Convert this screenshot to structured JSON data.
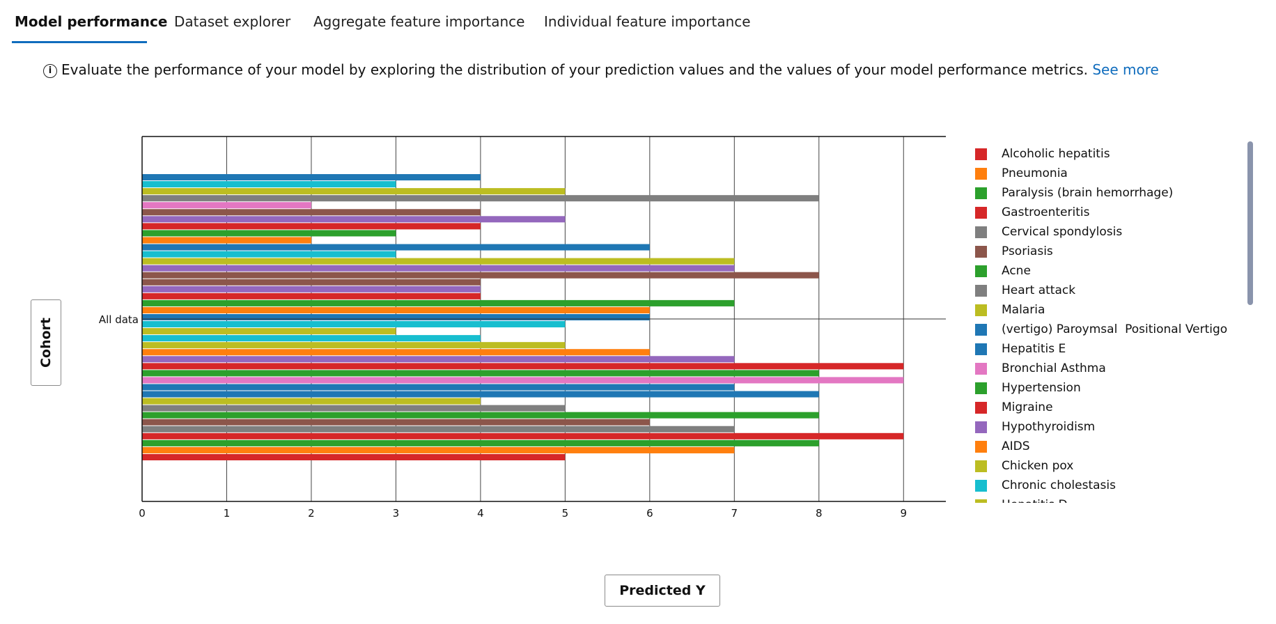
{
  "tabs": [
    {
      "label": "Model performance",
      "active": true
    },
    {
      "label": "Dataset explorer",
      "active": false
    },
    {
      "label": "Aggregate feature importance",
      "active": false
    },
    {
      "label": "Individual feature importance",
      "active": false
    }
  ],
  "info": {
    "icon": "info-icon",
    "text": "Evaluate the performance of your model by exploring the distribution of your prediction values and the values of your model performance metrics.",
    "link": "See more"
  },
  "cohort_button": "Cohort",
  "predicted_button": "Predicted Y",
  "chart_data": {
    "type": "bar",
    "orientation": "horizontal",
    "category": "All data",
    "xlim": [
      0,
      9.5
    ],
    "xticks": [
      0,
      1,
      2,
      3,
      4,
      5,
      6,
      7,
      8,
      9
    ],
    "grid": true,
    "bars": [
      {
        "value": 4,
        "color": "#1f77b4"
      },
      {
        "value": 3,
        "color": "#17becf"
      },
      {
        "value": 5,
        "color": "#bcbd22"
      },
      {
        "value": 8,
        "color": "#7f7f7f"
      },
      {
        "value": 2,
        "color": "#e377c2"
      },
      {
        "value": 4,
        "color": "#8c564b"
      },
      {
        "value": 5,
        "color": "#9467bd"
      },
      {
        "value": 4,
        "color": "#d62728"
      },
      {
        "value": 3,
        "color": "#2ca02c"
      },
      {
        "value": 2,
        "color": "#ff7f0e"
      },
      {
        "value": 6,
        "color": "#1f77b4"
      },
      {
        "value": 3,
        "color": "#17becf"
      },
      {
        "value": 7,
        "color": "#bcbd22"
      },
      {
        "value": 7,
        "color": "#9467bd"
      },
      {
        "value": 8,
        "color": "#8c564b"
      },
      {
        "value": 4,
        "color": "#8c564b"
      },
      {
        "value": 4,
        "color": "#9467bd"
      },
      {
        "value": 4,
        "color": "#d62728"
      },
      {
        "value": 7,
        "color": "#2ca02c"
      },
      {
        "value": 6,
        "color": "#ff7f0e"
      },
      {
        "value": 6,
        "color": "#1f77b4"
      },
      {
        "value": 5,
        "color": "#17becf"
      },
      {
        "value": 3,
        "color": "#bcbd22"
      },
      {
        "value": 4,
        "color": "#17becf"
      },
      {
        "value": 5,
        "color": "#bcbd22"
      },
      {
        "value": 6,
        "color": "#ff7f0e"
      },
      {
        "value": 7,
        "color": "#9467bd"
      },
      {
        "value": 9,
        "color": "#d62728"
      },
      {
        "value": 8,
        "color": "#2ca02c"
      },
      {
        "value": 9,
        "color": "#e377c2"
      },
      {
        "value": 7,
        "color": "#1f77b4"
      },
      {
        "value": 8,
        "color": "#1f77b4"
      },
      {
        "value": 4,
        "color": "#bcbd22"
      },
      {
        "value": 5,
        "color": "#7f7f7f"
      },
      {
        "value": 8,
        "color": "#2ca02c"
      },
      {
        "value": 6,
        "color": "#8c564b"
      },
      {
        "value": 7,
        "color": "#7f7f7f"
      },
      {
        "value": 9,
        "color": "#d62728"
      },
      {
        "value": 8,
        "color": "#2ca02c"
      },
      {
        "value": 7,
        "color": "#ff7f0e"
      },
      {
        "value": 5,
        "color": "#d62728"
      }
    ],
    "legend": {
      "placement": "right",
      "entries": [
        {
          "name": "Alcoholic hepatitis",
          "color": "#d62728"
        },
        {
          "name": "Pneumonia",
          "color": "#ff7f0e"
        },
        {
          "name": "Paralysis (brain hemorrhage)",
          "color": "#2ca02c"
        },
        {
          "name": "Gastroenteritis",
          "color": "#d62728"
        },
        {
          "name": "Cervical spondylosis",
          "color": "#7f7f7f"
        },
        {
          "name": "Psoriasis",
          "color": "#8c564b"
        },
        {
          "name": "Acne",
          "color": "#2ca02c"
        },
        {
          "name": "Heart attack",
          "color": "#7f7f7f"
        },
        {
          "name": "Malaria",
          "color": "#bcbd22"
        },
        {
          "name": "(vertigo) Paroymsal  Positional Vertigo",
          "color": "#1f77b4"
        },
        {
          "name": "Hepatitis E",
          "color": "#1f77b4"
        },
        {
          "name": "Bronchial Asthma",
          "color": "#e377c2"
        },
        {
          "name": "Hypertension",
          "color": "#2ca02c"
        },
        {
          "name": "Migraine",
          "color": "#d62728"
        },
        {
          "name": "Hypothyroidism",
          "color": "#9467bd"
        },
        {
          "name": "AIDS",
          "color": "#ff7f0e"
        },
        {
          "name": "Chicken pox",
          "color": "#bcbd22"
        },
        {
          "name": "Chronic cholestasis",
          "color": "#17becf"
        },
        {
          "name": "Hepatitis D",
          "color": "#bcbd22"
        }
      ]
    }
  }
}
